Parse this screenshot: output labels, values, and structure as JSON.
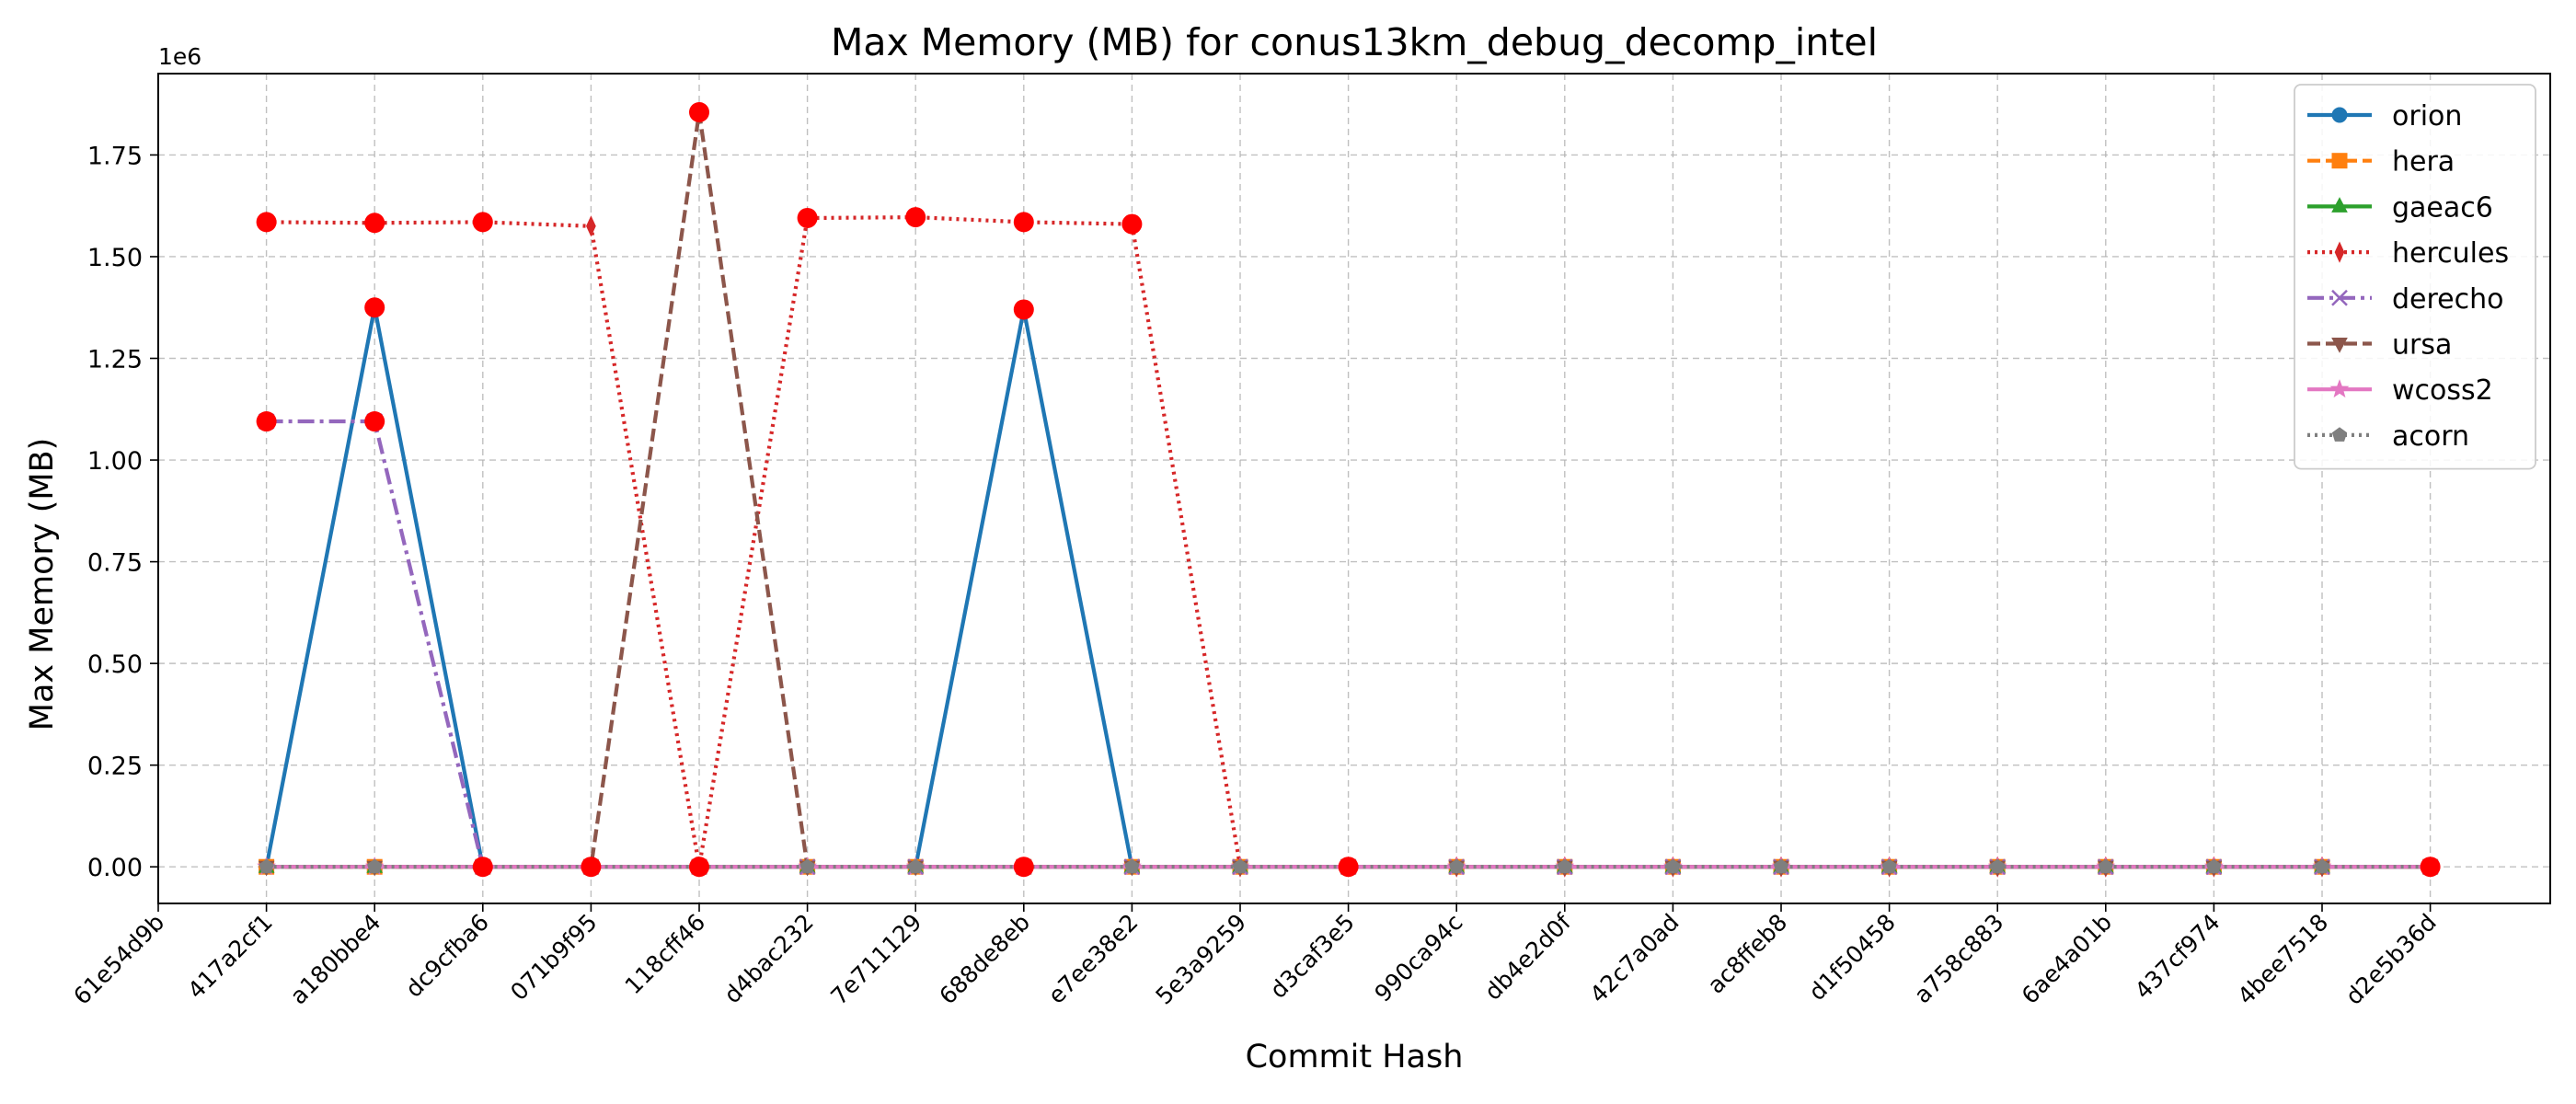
{
  "chart_data": {
    "type": "line",
    "title": "Max Memory (MB) for conus13km_debug_decomp_intel",
    "xlabel": "Commit Hash",
    "ylabel": "Max Memory (MB)",
    "y_offset_label": "1e6",
    "categories": [
      "61e54d9b",
      "417a2cf1",
      "a180bbe4",
      "dc9cfba6",
      "071b9f95",
      "118cff46",
      "d4bac232",
      "7e711129",
      "688de8eb",
      "e7ee38e2",
      "5e3a9259",
      "d3caf3e5",
      "990ca94c",
      "db4e2d0f",
      "42c7a0ad",
      "ac8ffeb8",
      "d1f50458",
      "a758c883",
      "6ae4a01b",
      "437cf974",
      "4bee7518",
      "d2e5b36d"
    ],
    "yticks": [
      "0.00",
      "0.25",
      "0.50",
      "0.75",
      "1.00",
      "1.25",
      "1.50",
      "1.75"
    ],
    "ylim": [
      -0.09,
      1.95
    ],
    "grid": true,
    "legend_position": "top-right",
    "series": [
      {
        "name": "orion",
        "color": "#1f77b4",
        "dash": "solid",
        "marker": "circle",
        "values": [
          null,
          0,
          1.375,
          0,
          0,
          0,
          0,
          0,
          1.37,
          0,
          0,
          0,
          0,
          0,
          0,
          0,
          0,
          0,
          0,
          0,
          0,
          0
        ]
      },
      {
        "name": "hera",
        "color": "#ff7f0e",
        "dash": "dashed",
        "marker": "square",
        "values": [
          null,
          0,
          0,
          0,
          0,
          0,
          0,
          0,
          0,
          0,
          0,
          0,
          0,
          0,
          0,
          0,
          0,
          0,
          0,
          0,
          0,
          0
        ]
      },
      {
        "name": "gaeac6",
        "color": "#2ca02c",
        "dash": "solid",
        "marker": "triangle-up",
        "values": [
          null,
          0,
          0,
          0,
          0,
          0,
          0,
          0,
          0,
          0,
          0,
          0,
          0,
          0,
          0,
          0,
          0,
          0,
          0,
          0,
          0,
          0
        ]
      },
      {
        "name": "hercules",
        "color": "#d62728",
        "dash": "dotted",
        "marker": "thin-diamond",
        "values": [
          null,
          1.585,
          1.583,
          1.585,
          1.575,
          0,
          1.595,
          1.597,
          1.585,
          1.58,
          0,
          0,
          0,
          0,
          0,
          0,
          0,
          0,
          0,
          0,
          0,
          0
        ]
      },
      {
        "name": "derecho",
        "color": "#9467bd",
        "dash": "dashdot",
        "marker": "x",
        "values": [
          null,
          1.095,
          1.095,
          0,
          0,
          0,
          0,
          0,
          0,
          0,
          0,
          0,
          0,
          0,
          0,
          0,
          0,
          0,
          0,
          0,
          0,
          0
        ]
      },
      {
        "name": "ursa",
        "color": "#8c564b",
        "dash": "dashed",
        "marker": "triangle-down",
        "values": [
          null,
          0,
          0,
          0,
          0,
          1.855,
          0,
          0,
          0,
          0,
          0,
          0,
          0,
          0,
          0,
          0,
          0,
          0,
          0,
          0,
          0,
          0
        ]
      },
      {
        "name": "wcoss2",
        "color": "#e377c2",
        "dash": "solid",
        "marker": "star",
        "values": [
          null,
          0,
          0,
          0,
          0,
          0,
          0,
          0,
          0,
          0,
          0,
          0,
          0,
          0,
          0,
          0,
          0,
          0,
          0,
          0,
          0,
          0
        ]
      },
      {
        "name": "acorn",
        "color": "#7f7f7f",
        "dash": "dotted",
        "marker": "pentagon",
        "values": [
          null,
          0,
          0,
          0,
          0,
          0,
          0,
          0,
          0,
          0,
          0,
          0,
          0,
          0,
          0,
          0,
          0,
          0,
          0,
          0,
          0,
          0
        ]
      }
    ],
    "highlighted_points": {
      "color": "#ff0000",
      "points": [
        [
          1,
          1.585
        ],
        [
          2,
          1.583
        ],
        [
          3,
          1.585
        ],
        [
          6,
          1.595
        ],
        [
          7,
          1.597
        ],
        [
          8,
          1.585
        ],
        [
          9,
          1.58
        ],
        [
          5,
          1.855
        ],
        [
          2,
          1.375
        ],
        [
          8,
          1.37
        ],
        [
          1,
          1.095
        ],
        [
          2,
          1.095
        ],
        [
          3,
          0
        ],
        [
          4,
          0
        ],
        [
          5,
          0
        ],
        [
          8,
          0
        ],
        [
          11,
          0
        ],
        [
          21,
          0
        ]
      ]
    }
  }
}
